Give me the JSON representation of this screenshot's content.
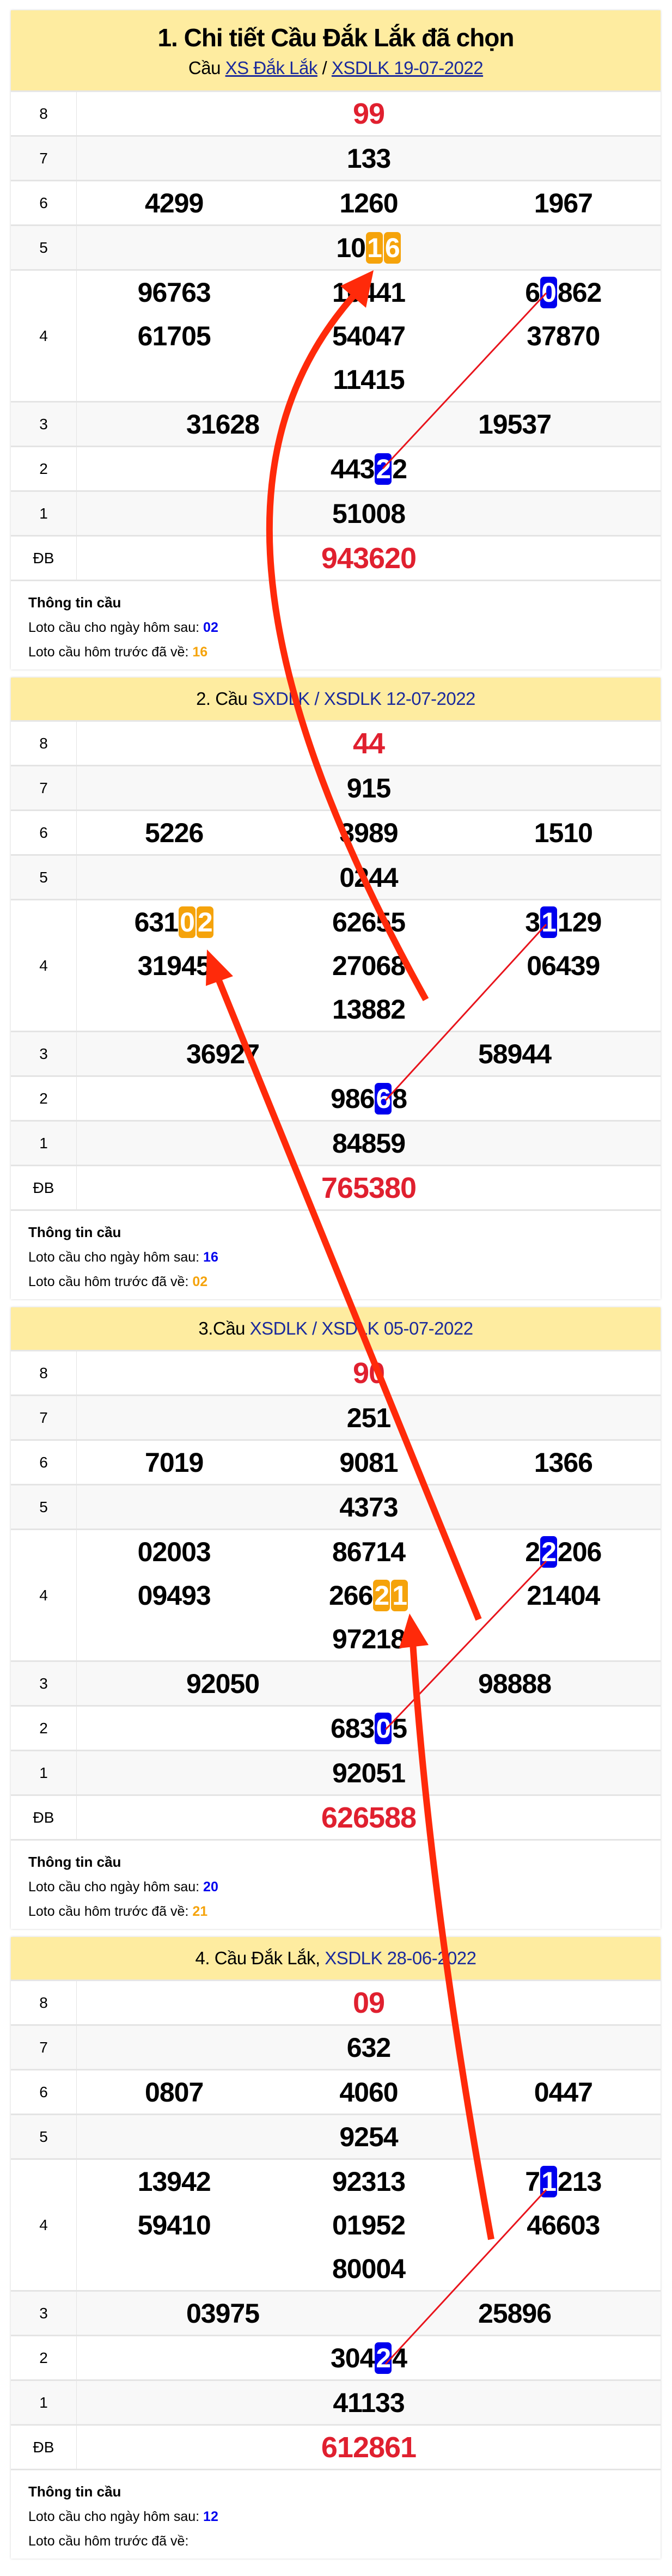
{
  "colors": {
    "header_bg": "#feeca0",
    "red": "#e0202f",
    "link": "#1b2a9c",
    "orange": "#f5a30b",
    "blue": "#0000ee",
    "arrow": "#ff2a0a"
  },
  "info_labels": {
    "title": "Thông tin cầu",
    "next": "Loto cầu cho ngày hôm sau: ",
    "prev": "Loto cầu hôm trước đã về: "
  },
  "sections": [
    {
      "title": "1. Chi tiết Cầu Đắk Lắk đã chọn",
      "sub_prefix": "Cầu ",
      "link1": "XS Đắk Lắk",
      "sep": " / ",
      "link2": "XSDLK 19-07-2022",
      "rows": [
        {
          "label": "8",
          "values": [
            {
              "v": "99",
              "red": true
            }
          ]
        },
        {
          "label": "7",
          "values": [
            {
              "v": "133"
            }
          ]
        },
        {
          "label": "6",
          "values": [
            {
              "v": "4299"
            },
            {
              "v": "1260"
            },
            {
              "v": "1967"
            }
          ]
        },
        {
          "label": "5",
          "values": [
            {
              "v": "1016",
              "hl": [
                2,
                4
              ],
              "c": "orange"
            }
          ]
        },
        {
          "label": "4",
          "values": [
            {
              "v": "96763"
            },
            {
              "v": "10441"
            },
            {
              "v": "60862",
              "hl": [
                1,
                2
              ],
              "c": "blue"
            },
            {
              "v": "61705"
            },
            {
              "v": "54047"
            },
            {
              "v": "37870"
            },
            {
              "v": "11415"
            }
          ]
        },
        {
          "label": "3",
          "values": [
            {
              "v": "31628"
            },
            {
              "v": "19537"
            }
          ]
        },
        {
          "label": "2",
          "values": [
            {
              "v": "44322",
              "hl": [
                3,
                4
              ],
              "c": "blue"
            }
          ]
        },
        {
          "label": "1",
          "values": [
            {
              "v": "51008"
            }
          ]
        },
        {
          "label": "ĐB",
          "values": [
            {
              "v": "943620",
              "red": true
            }
          ]
        }
      ],
      "info": {
        "next": "02",
        "prev": "16"
      }
    },
    {
      "prefix": "2. Cầu ",
      "link": "SXDLK / XSDLK 12-07-2022",
      "rows": [
        {
          "label": "8",
          "values": [
            {
              "v": "44",
              "red": true
            }
          ]
        },
        {
          "label": "7",
          "values": [
            {
              "v": "915"
            }
          ]
        },
        {
          "label": "6",
          "values": [
            {
              "v": "5226"
            },
            {
              "v": "3989"
            },
            {
              "v": "1510"
            }
          ]
        },
        {
          "label": "5",
          "values": [
            {
              "v": "0244"
            }
          ]
        },
        {
          "label": "4",
          "values": [
            {
              "v": "63102",
              "hl": [
                3,
                5
              ],
              "c": "orange"
            },
            {
              "v": "62655"
            },
            {
              "v": "31129",
              "hl": [
                1,
                2
              ],
              "c": "blue"
            },
            {
              "v": "31945"
            },
            {
              "v": "27068"
            },
            {
              "v": "06439"
            },
            {
              "v": "13882"
            }
          ]
        },
        {
          "label": "3",
          "values": [
            {
              "v": "36927"
            },
            {
              "v": "58944"
            }
          ]
        },
        {
          "label": "2",
          "values": [
            {
              "v": "98668",
              "hl": [
                3,
                4
              ],
              "c": "blue"
            }
          ]
        },
        {
          "label": "1",
          "values": [
            {
              "v": "84859"
            }
          ]
        },
        {
          "label": "ĐB",
          "values": [
            {
              "v": "765380",
              "red": true
            }
          ]
        }
      ],
      "info": {
        "next": "16",
        "prev": "02"
      }
    },
    {
      "prefix": "3.Cầu ",
      "link": "XSDLK / XSDLK 05-07-2022",
      "rows": [
        {
          "label": "8",
          "values": [
            {
              "v": "90",
              "red": true
            }
          ]
        },
        {
          "label": "7",
          "values": [
            {
              "v": "251"
            }
          ]
        },
        {
          "label": "6",
          "values": [
            {
              "v": "7019"
            },
            {
              "v": "9081"
            },
            {
              "v": "1366"
            }
          ]
        },
        {
          "label": "5",
          "values": [
            {
              "v": "4373"
            }
          ]
        },
        {
          "label": "4",
          "values": [
            {
              "v": "02003"
            },
            {
              "v": "86714"
            },
            {
              "v": "22206",
              "hl": [
                1,
                2
              ],
              "c": "blue"
            },
            {
              "v": "09493"
            },
            {
              "v": "26621",
              "hl": [
                3,
                5
              ],
              "c": "orange"
            },
            {
              "v": "21404"
            },
            {
              "v": "97218"
            }
          ]
        },
        {
          "label": "3",
          "values": [
            {
              "v": "92050"
            },
            {
              "v": "98888"
            }
          ]
        },
        {
          "label": "2",
          "values": [
            {
              "v": "68305",
              "hl": [
                3,
                4
              ],
              "c": "blue"
            }
          ]
        },
        {
          "label": "1",
          "values": [
            {
              "v": "92051"
            }
          ]
        },
        {
          "label": "ĐB",
          "values": [
            {
              "v": "626588",
              "red": true
            }
          ]
        }
      ],
      "info": {
        "next": "20",
        "prev": "21"
      }
    },
    {
      "prefix": "4. Cầu Đắk Lắk, ",
      "link": "XSDLK 28-06-2022",
      "rows": [
        {
          "label": "8",
          "values": [
            {
              "v": "09",
              "red": true
            }
          ]
        },
        {
          "label": "7",
          "values": [
            {
              "v": "632"
            }
          ]
        },
        {
          "label": "6",
          "values": [
            {
              "v": "0807"
            },
            {
              "v": "4060"
            },
            {
              "v": "0447"
            }
          ]
        },
        {
          "label": "5",
          "values": [
            {
              "v": "9254"
            }
          ]
        },
        {
          "label": "4",
          "values": [
            {
              "v": "13942"
            },
            {
              "v": "92313"
            },
            {
              "v": "71213",
              "hl": [
                1,
                2
              ],
              "c": "blue"
            },
            {
              "v": "59410"
            },
            {
              "v": "01952"
            },
            {
              "v": "46603"
            },
            {
              "v": "80004"
            }
          ]
        },
        {
          "label": "3",
          "values": [
            {
              "v": "03975"
            },
            {
              "v": "25896"
            }
          ]
        },
        {
          "label": "2",
          "values": [
            {
              "v": "30424",
              "hl": [
                3,
                4
              ],
              "c": "blue"
            }
          ]
        },
        {
          "label": "1",
          "values": [
            {
              "v": "41133"
            }
          ]
        },
        {
          "label": "ĐB",
          "values": [
            {
              "v": "612861",
              "red": true
            }
          ]
        }
      ],
      "info": {
        "next": "12",
        "prev": ""
      }
    }
  ]
}
